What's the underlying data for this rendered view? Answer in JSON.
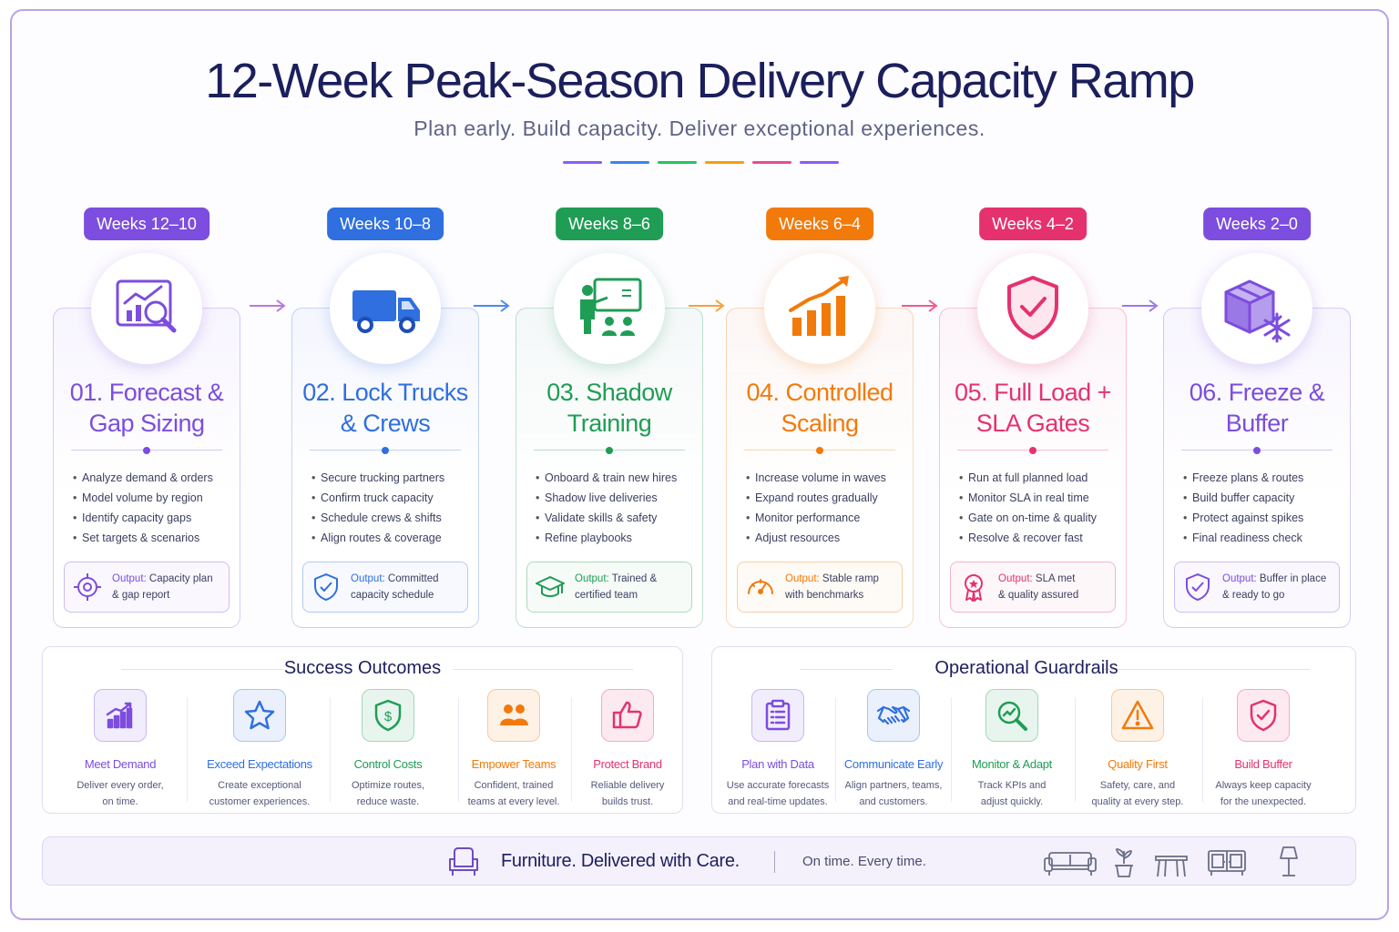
{
  "header": {
    "title": "12-Week Peak-Season Delivery Capacity Ramp",
    "subtitle": "Plan early. Build capacity. Deliver exceptional experiences.",
    "rule_colors": [
      "#8b5cf6",
      "#3b82f6",
      "#22c55e",
      "#f59e0b",
      "#ec4899",
      "#8b5cf6"
    ]
  },
  "phases": [
    {
      "weeks": "Weeks 12–10",
      "title_line1": "01. Forecast &",
      "title_line2": "Gap Sizing",
      "color": "#7c4dde",
      "icon": "forecast-chart-magnifier-icon",
      "bullets": [
        "Analyze demand & orders",
        "Model volume by region",
        "Identify capacity gaps",
        "Set targets & scenarios"
      ],
      "output_label": "Output:",
      "output_line1": "Capacity plan",
      "output_line2": "& gap report",
      "output_icon": "target-icon"
    },
    {
      "weeks": "Weeks 10–8",
      "title_line1": "02. Lock Trucks",
      "title_line2": "& Crews",
      "color": "#2f6fe0",
      "icon": "truck-icon",
      "bullets": [
        "Secure trucking partners",
        "Confirm truck capacity",
        "Schedule crews & shifts",
        "Align routes & coverage"
      ],
      "output_label": "Output:",
      "output_line1": "Committed",
      "output_line2": "capacity schedule",
      "output_icon": "shield-check-icon"
    },
    {
      "weeks": "Weeks 8–6",
      "title_line1": "03. Shadow",
      "title_line2": "Training",
      "color": "#1f9d55",
      "icon": "trainer-board-icon",
      "bullets": [
        "Onboard & train new hires",
        "Shadow live deliveries",
        "Validate skills & safety",
        "Refine playbooks"
      ],
      "output_label": "Output:",
      "output_line1": "Trained &",
      "output_line2": "certified team",
      "output_icon": "graduation-cap-icon"
    },
    {
      "weeks": "Weeks 6–4",
      "title_line1": "04. Controlled",
      "title_line2": "Scaling",
      "color": "#f27a0a",
      "icon": "growth-bars-icon",
      "bullets": [
        "Increase volume in waves",
        "Expand routes gradually",
        "Monitor performance",
        "Adjust resources"
      ],
      "output_label": "Output:",
      "output_line1": "Stable ramp",
      "output_line2": "with benchmarks",
      "output_icon": "gauge-icon"
    },
    {
      "weeks": "Weeks 4–2",
      "title_line1": "05. Full Load +",
      "title_line2": "SLA Gates",
      "color": "#e5326f",
      "icon": "shield-check-icon",
      "bullets": [
        "Run at full planned load",
        "Monitor SLA in real time",
        "Gate on on-time & quality",
        "Resolve & recover fast"
      ],
      "output_label": "Output:",
      "output_line1": "SLA met",
      "output_line2": "& quality assured",
      "output_icon": "award-ribbon-icon"
    },
    {
      "weeks": "Weeks 2–0",
      "title_line1": "06. Freeze &",
      "title_line2": "Buffer",
      "color": "#7c4dde",
      "icon": "box-snowflake-icon",
      "bullets": [
        "Freeze plans & routes",
        "Build buffer capacity",
        "Protect against spikes",
        "Final readiness check"
      ],
      "output_label": "Output:",
      "output_line1": "Buffer in place",
      "output_line2": "& ready to go",
      "output_icon": "shield-check-icon"
    }
  ],
  "success": {
    "heading": "Success Outcomes",
    "items": [
      {
        "name": "Meet Demand",
        "desc1": "Deliver every order,",
        "desc2": "on time.",
        "color": "#7c4dde",
        "icon": "bar-chart-up-icon"
      },
      {
        "name": "Exceed Expectations",
        "desc1": "Create exceptional",
        "desc2": "customer experiences.",
        "color": "#2f6fe0",
        "icon": "star-icon"
      },
      {
        "name": "Control Costs",
        "desc1": "Optimize routes,",
        "desc2": "reduce waste.",
        "color": "#1f9d55",
        "icon": "dollar-shield-icon"
      },
      {
        "name": "Empower Teams",
        "desc1": "Confident, trained",
        "desc2": "teams at every level.",
        "color": "#f27a0a",
        "icon": "team-icon"
      },
      {
        "name": "Protect Brand",
        "desc1": "Reliable delivery",
        "desc2": "builds trust.",
        "color": "#e5326f",
        "icon": "thumbs-up-icon"
      }
    ]
  },
  "guardrails": {
    "heading": "Operational Guardrails",
    "items": [
      {
        "name": "Plan with Data",
        "desc1": "Use accurate forecasts",
        "desc2": "and real-time updates.",
        "color": "#7c4dde",
        "icon": "clipboard-icon"
      },
      {
        "name": "Communicate Early",
        "desc1": "Align partners, teams,",
        "desc2": "and customers.",
        "color": "#2f6fe0",
        "icon": "handshake-icon"
      },
      {
        "name": "Monitor & Adapt",
        "desc1": "Track KPIs and",
        "desc2": "adjust quickly.",
        "color": "#1f9d55",
        "icon": "magnifier-trend-icon"
      },
      {
        "name": "Quality First",
        "desc1": "Safety, care, and",
        "desc2": "quality at every step.",
        "color": "#f27a0a",
        "icon": "warning-icon"
      },
      {
        "name": "Build Buffer",
        "desc1": "Always keep capacity",
        "desc2": "for the unexpected.",
        "color": "#e5326f",
        "icon": "shield-check-icon"
      }
    ]
  },
  "footer": {
    "brand": "Furniture. Delivered with Care.",
    "tagline": "On time.  Every time.",
    "icons": [
      "armchair-icon",
      "sofa-icon",
      "plant-icon",
      "table-icon",
      "sideboard-icon",
      "lamp-icon"
    ]
  }
}
